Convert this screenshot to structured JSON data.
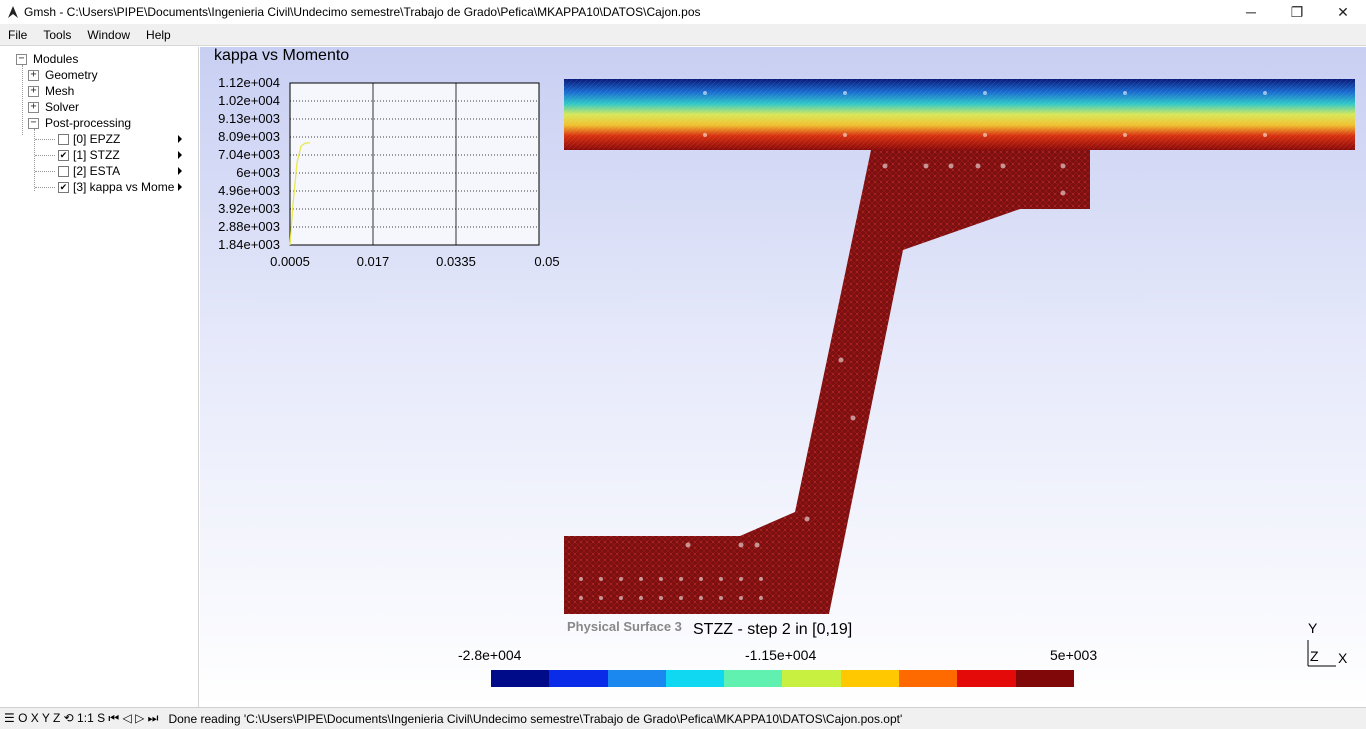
{
  "window": {
    "title": "Gmsh - C:\\Users\\PIPE\\Documents\\Ingenieria Civil\\Undecimo semestre\\Trabajo de Grado\\Pefica\\MKAPPA10\\DATOS\\Cajon.pos",
    "minimize": "─",
    "restore": "❐",
    "close": "✕"
  },
  "menu": [
    {
      "label": "File"
    },
    {
      "label": "Tools"
    },
    {
      "label": "Window"
    },
    {
      "label": "Help"
    }
  ],
  "tree": {
    "root": "Modules",
    "geometry": "Geometry",
    "mesh": "Mesh",
    "solver": "Solver",
    "post": "Post-processing",
    "views": [
      {
        "label": "[0] EPZZ",
        "checked": false
      },
      {
        "label": "[1] STZZ",
        "checked": true
      },
      {
        "label": "[2] ESTA",
        "checked": false
      },
      {
        "label": "[3] kappa vs Mome",
        "checked": true
      }
    ],
    "gear_icon": "gear-icon"
  },
  "plot": {
    "title": "kappa vs Momento",
    "yticks": [
      "1.12e+004",
      "1.02e+004",
      "9.13e+003",
      "8.09e+003",
      "7.04e+003",
      "6e+003",
      "4.96e+003",
      "3.92e+003",
      "2.88e+003",
      "1.84e+003"
    ],
    "xticks": [
      "0.0005",
      "0.017",
      "0.0335",
      "0.05"
    ],
    "line_color": "#e8e850"
  },
  "chart_data": {
    "type": "line",
    "title": "kappa vs Momento",
    "xlabel": "",
    "ylabel": "",
    "xlim": [
      0.0005,
      0.05
    ],
    "ylim": [
      1840,
      11200
    ],
    "series": [
      {
        "values": [
          [
            0.0005,
            1840
          ],
          [
            0.0011,
            4200
          ],
          [
            0.0019,
            6600
          ],
          [
            0.0027,
            7560
          ],
          [
            0.0035,
            7720
          ],
          [
            0.0045,
            7750
          ]
        ]
      }
    ],
    "grid": true
  },
  "view": {
    "physical_label": "Physical Surface 3",
    "title": "STZZ - step 2 in [0,19]",
    "colorbar_min": "-2.8e+004",
    "colorbar_mid": "-1.15e+004",
    "colorbar_max": "5e+003",
    "colorbar_colors": [
      "#000b8a",
      "#0a2be8",
      "#1a88ee",
      "#10d8f0",
      "#60f0b0",
      "#c8f040",
      "#ffc800",
      "#ff6a00",
      "#e40a0a",
      "#800808"
    ]
  },
  "axes": {
    "y": "Y",
    "z": "Z",
    "x": "X"
  },
  "status": {
    "toolbar": "☰ O X Y Z ⟲ 1:1 S ⏮ ◁ ▷ ⏭",
    "message": "Done reading 'C:\\Users\\PIPE\\Documents\\Ingenieria Civil\\Undecimo semestre\\Trabajo de Grado\\Pefica\\MKAPPA10\\DATOS\\Cajon.pos.opt'"
  }
}
